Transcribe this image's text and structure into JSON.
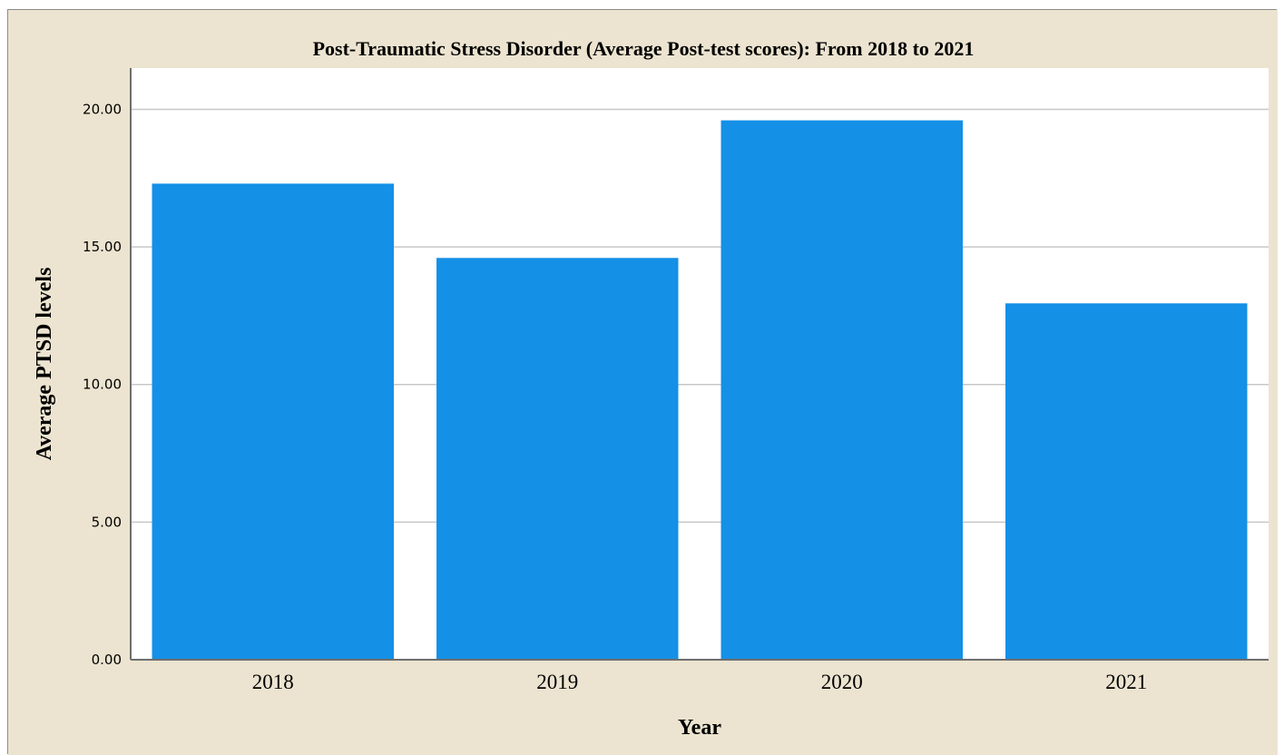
{
  "chart_data": {
    "type": "bar",
    "title": "Post-Traumatic Stress Disorder (Average Post-test scores): From 2018 to 2021",
    "xlabel": "Year",
    "ylabel": "Average PTSD levels",
    "categories": [
      "2018",
      "2019",
      "2020",
      "2021"
    ],
    "values": [
      17.3,
      14.6,
      19.6,
      12.95
    ],
    "ylim": [
      0,
      21.5
    ],
    "yticks": [
      0,
      5,
      10,
      15,
      20
    ],
    "ytick_labels": [
      "0.00",
      "5.00",
      "10.00",
      "15.00",
      "20.00"
    ],
    "grid": true,
    "legend": "none",
    "colors": {
      "bar": "#1490e6",
      "background": "#ece4d0",
      "plot_area": "#ffffff",
      "gridline": "#c8c8c8",
      "axis": "#6e6e6e"
    }
  }
}
